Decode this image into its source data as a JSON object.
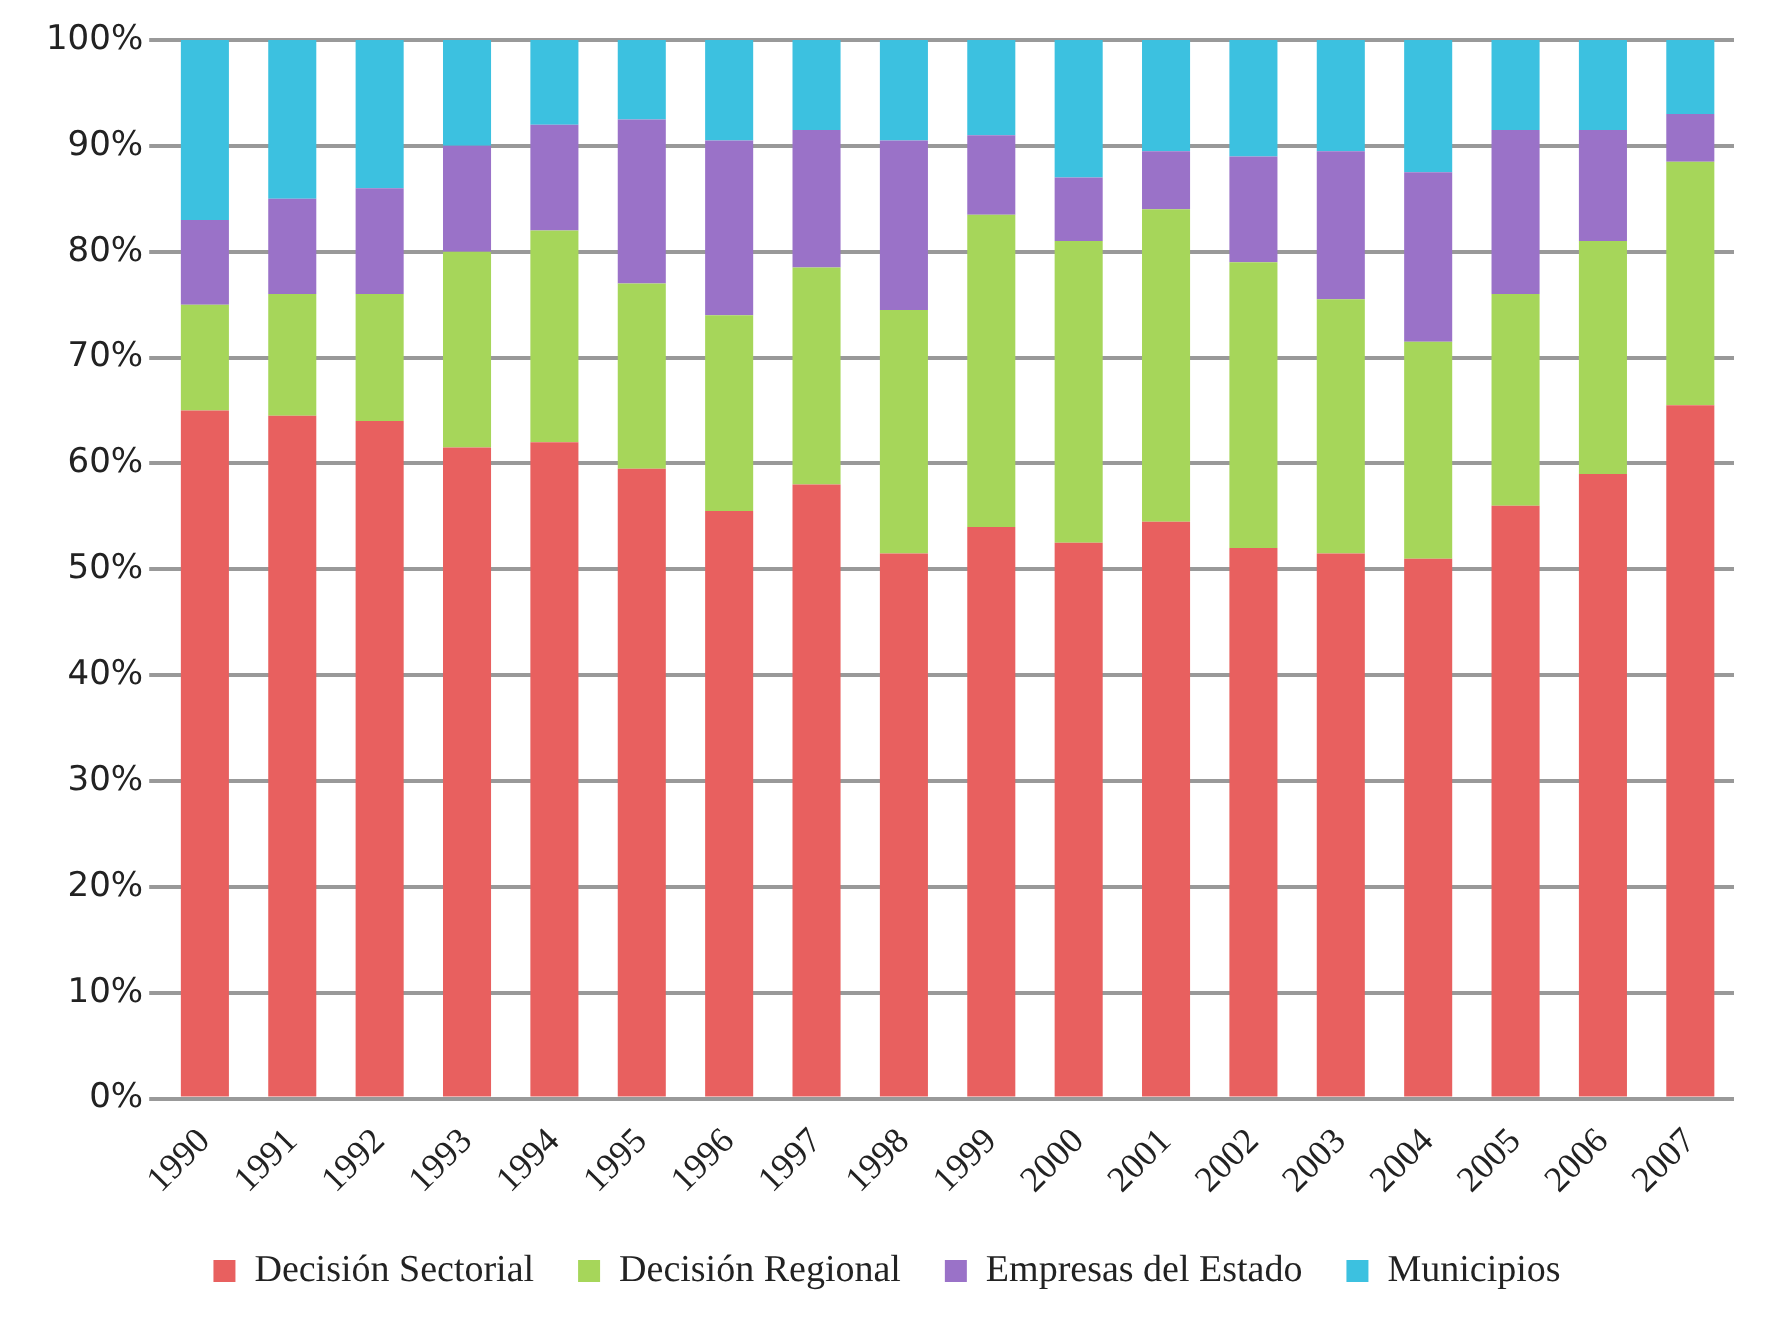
{
  "chart_data": {
    "type": "bar",
    "stacked": true,
    "categories": [
      "1990",
      "1991",
      "1992",
      "1993",
      "1994",
      "1995",
      "1996",
      "1997",
      "1998",
      "1999",
      "2000",
      "2001",
      "2002",
      "2003",
      "2004",
      "2005",
      "2006",
      "2007"
    ],
    "series": [
      {
        "name": "Decisión Sectorial",
        "color": "#e8605f",
        "values": [
          65,
          64.5,
          64,
          61.5,
          62,
          59.5,
          55.5,
          58,
          51.5,
          54,
          52.5,
          54.5,
          52,
          51.5,
          51,
          56,
          59,
          65.5
        ]
      },
      {
        "name": "Decisión Regional",
        "color": "#a6d65a",
        "values": [
          10,
          11.5,
          12,
          18.5,
          20,
          17.5,
          18.5,
          20.5,
          23,
          29.5,
          28.5,
          29.5,
          27,
          24,
          20.5,
          20,
          22,
          23
        ]
      },
      {
        "name": "Empresas del Estado",
        "color": "#9a72c8",
        "values": [
          8,
          9,
          10,
          10,
          10,
          15.5,
          16.5,
          13,
          16,
          7.5,
          6,
          5.5,
          10,
          14,
          16,
          15.5,
          10.5,
          4.5
        ]
      },
      {
        "name": "Municipios",
        "color": "#3cc1e0",
        "values": [
          17,
          15,
          14,
          10,
          8,
          7.5,
          9.5,
          8.5,
          9.5,
          9,
          13,
          10.5,
          11,
          10.5,
          12.5,
          8.5,
          8.5,
          7
        ]
      }
    ],
    "ylim": [
      0,
      100
    ],
    "yticks": [
      {
        "value": 0,
        "label": "0%"
      },
      {
        "value": 10,
        "label": "10%"
      },
      {
        "value": 20,
        "label": "20%"
      },
      {
        "value": 30,
        "label": "30%"
      },
      {
        "value": 40,
        "label": "40%"
      },
      {
        "value": 50,
        "label": "50%"
      },
      {
        "value": 60,
        "label": "60%"
      },
      {
        "value": 70,
        "label": "70%"
      },
      {
        "value": 80,
        "label": "80%"
      },
      {
        "value": 90,
        "label": "90%"
      },
      {
        "value": 100,
        "label": "100%"
      }
    ],
    "grid": "y",
    "legend": "bottom"
  }
}
